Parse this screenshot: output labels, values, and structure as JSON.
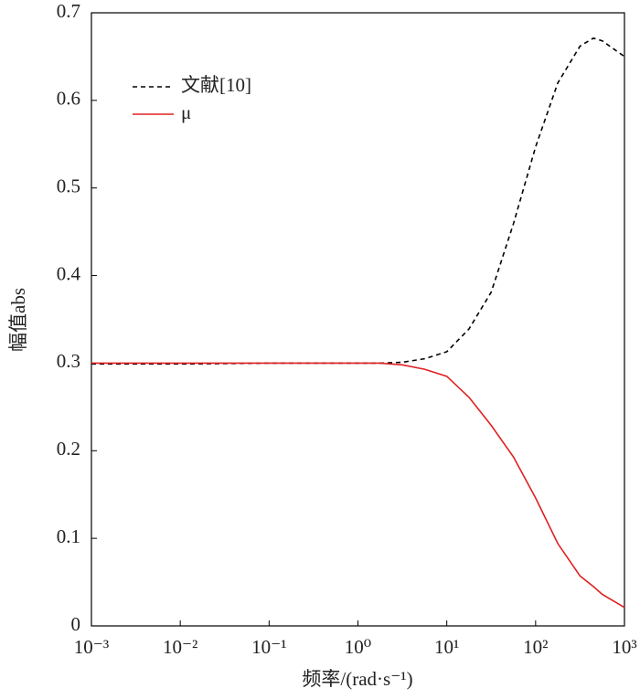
{
  "chart_data": {
    "type": "line",
    "xlabel": "频率/(rad·s⁻¹)",
    "ylabel": "幅值abs",
    "xscale": "log",
    "x": [
      0.001,
      0.01,
      0.1,
      1,
      1.778,
      3.162,
      5.623,
      10,
      17.78,
      31.62,
      56.23,
      100,
      177.8,
      316.2,
      446.7,
      562.3,
      1000
    ],
    "series": [
      {
        "name": "文献[10]",
        "color": "#000000",
        "dash": true,
        "values": [
          0.299,
          0.299,
          0.3,
          0.3,
          0.3,
          0.301,
          0.305,
          0.313,
          0.339,
          0.381,
          0.459,
          0.547,
          0.62,
          0.662,
          0.671,
          0.668,
          0.65
        ]
      },
      {
        "name": "μ",
        "color": "#e02020",
        "dash": false,
        "values": [
          0.3,
          0.3,
          0.3,
          0.3,
          0.3,
          0.298,
          0.293,
          0.285,
          0.261,
          0.229,
          0.193,
          0.146,
          0.094,
          0.057,
          0.045,
          0.036,
          0.021
        ]
      }
    ],
    "xlim": [
      0.001,
      1000
    ],
    "xticks": [
      {
        "value": 0.001,
        "label": "10⁻³"
      },
      {
        "value": 0.01,
        "label": "10⁻²"
      },
      {
        "value": 0.1,
        "label": "10⁻¹"
      },
      {
        "value": 1,
        "label": "10⁰"
      },
      {
        "value": 10,
        "label": "10¹"
      },
      {
        "value": 100,
        "label": "10²"
      },
      {
        "value": 1000,
        "label": "10³"
      }
    ],
    "ylim": [
      0,
      0.7
    ],
    "yticks": [
      0,
      0.1,
      0.2,
      0.3,
      0.4,
      0.5,
      0.6,
      0.7
    ],
    "legend": "upper-left"
  }
}
